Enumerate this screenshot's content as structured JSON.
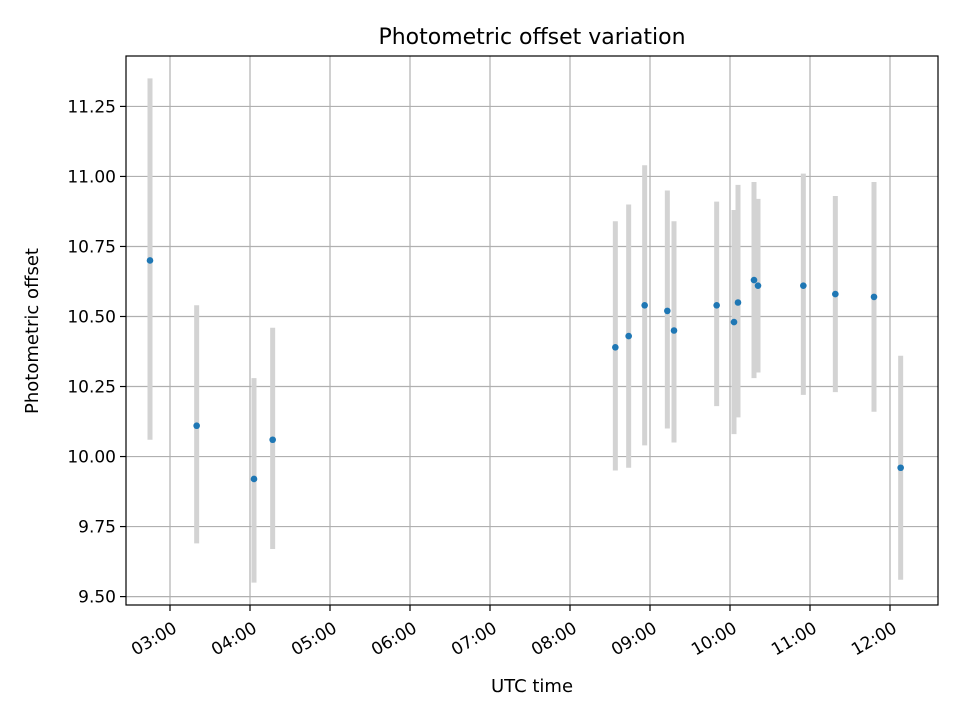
{
  "chart_data": {
    "type": "scatter",
    "title": "Photometric offset variation",
    "xlabel": "UTC time",
    "ylabel": "Photometric offset",
    "xlim": [
      "02:27",
      "12:36"
    ],
    "ylim": [
      9.47,
      11.43
    ],
    "x_ticks": [
      "03:00",
      "04:00",
      "05:00",
      "06:00",
      "07:00",
      "08:00",
      "09:00",
      "10:00",
      "11:00",
      "12:00"
    ],
    "y_ticks": [
      "9.50",
      "9.75",
      "10.00",
      "10.25",
      "10.50",
      "10.75",
      "11.00",
      "11.25"
    ],
    "grid": true,
    "colors": {
      "point": "#1f77b4",
      "errorbar": "#d3d3d3",
      "grid": "#b0b0b0"
    },
    "series": [
      {
        "points": [
          {
            "x": "02:45",
            "y": 10.7,
            "err_low": 10.06,
            "err_high": 11.35
          },
          {
            "x": "03:20",
            "y": 10.11,
            "err_low": 9.69,
            "err_high": 10.54
          },
          {
            "x": "04:03",
            "y": 9.92,
            "err_low": 9.55,
            "err_high": 10.28
          },
          {
            "x": "04:17",
            "y": 10.06,
            "err_low": 9.67,
            "err_high": 10.46
          },
          {
            "x": "08:34",
            "y": 10.39,
            "err_low": 9.95,
            "err_high": 10.84
          },
          {
            "x": "08:44",
            "y": 10.43,
            "err_low": 9.96,
            "err_high": 10.9
          },
          {
            "x": "08:56",
            "y": 10.54,
            "err_low": 10.04,
            "err_high": 11.04
          },
          {
            "x": "09:13",
            "y": 10.52,
            "err_low": 10.1,
            "err_high": 10.95
          },
          {
            "x": "09:18",
            "y": 10.45,
            "err_low": 10.05,
            "err_high": 10.84
          },
          {
            "x": "09:50",
            "y": 10.54,
            "err_low": 10.18,
            "err_high": 10.91
          },
          {
            "x": "10:03",
            "y": 10.48,
            "err_low": 10.08,
            "err_high": 10.88
          },
          {
            "x": "10:06",
            "y": 10.55,
            "err_low": 10.14,
            "err_high": 10.97
          },
          {
            "x": "10:18",
            "y": 10.63,
            "err_low": 10.28,
            "err_high": 10.98
          },
          {
            "x": "10:21",
            "y": 10.61,
            "err_low": 10.3,
            "err_high": 10.92
          },
          {
            "x": "10:55",
            "y": 10.61,
            "err_low": 10.22,
            "err_high": 11.01
          },
          {
            "x": "11:19",
            "y": 10.58,
            "err_low": 10.23,
            "err_high": 10.93
          },
          {
            "x": "11:48",
            "y": 10.57,
            "err_low": 10.16,
            "err_high": 10.98
          },
          {
            "x": "12:08",
            "y": 9.96,
            "err_low": 9.56,
            "err_high": 10.36
          }
        ]
      }
    ]
  }
}
